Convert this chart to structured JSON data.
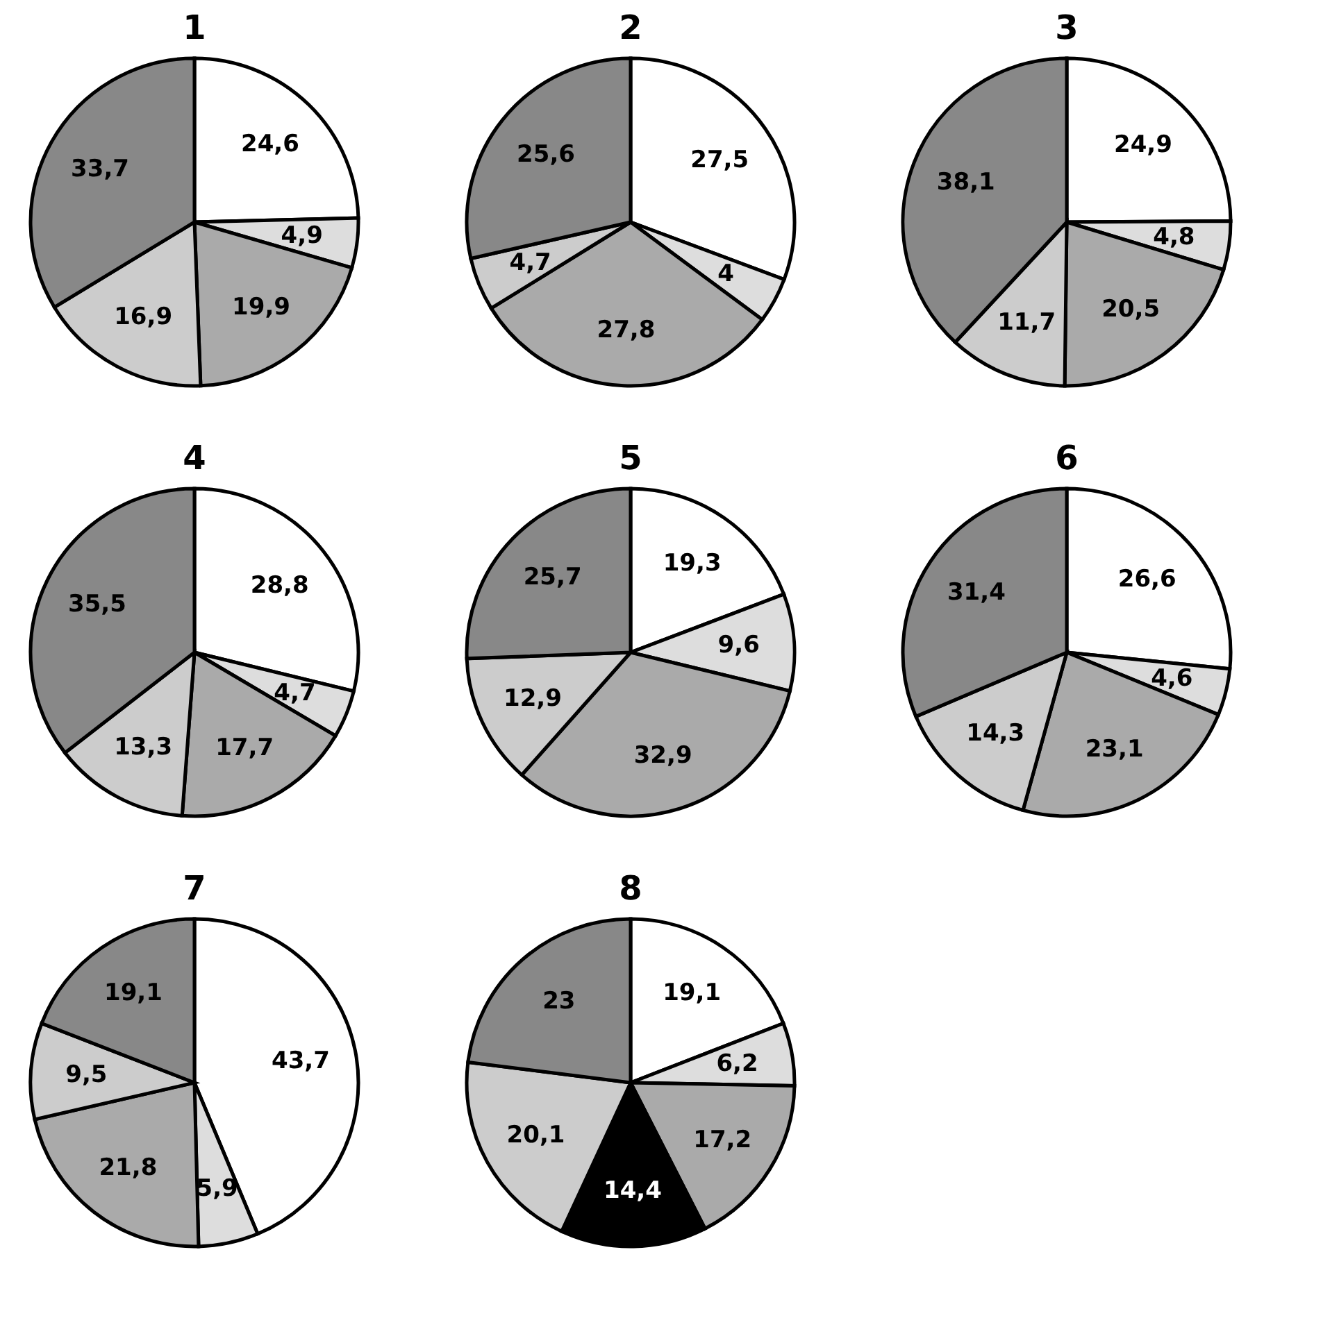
{
  "chart_data": [
    {
      "type": "pie",
      "title": "1",
      "categories": [
        null,
        null,
        null,
        null,
        null
      ],
      "values": [
        24.6,
        4.9,
        19.9,
        16.9,
        33.7
      ],
      "value_labels": [
        "24,6",
        "4,9",
        "19,9",
        "16,9",
        "33,7"
      ],
      "colors": [
        "#ffffff",
        "#dddddd",
        "#aaaaaa",
        "#cccccc",
        "#888888"
      ]
    },
    {
      "type": "pie",
      "title": "2",
      "categories": [
        null,
        null,
        null,
        null,
        null
      ],
      "values": [
        27.5,
        4,
        27.8,
        4.7,
        25.6
      ],
      "value_labels": [
        "27,5",
        "4",
        "27,8",
        "4,7",
        "25,6"
      ],
      "colors": [
        "#ffffff",
        "#dddddd",
        "#aaaaaa",
        "#cccccc",
        "#888888"
      ]
    },
    {
      "type": "pie",
      "title": "3",
      "categories": [
        null,
        null,
        null,
        null,
        null
      ],
      "values": [
        24.9,
        4.8,
        20.5,
        11.7,
        38.1
      ],
      "value_labels": [
        "24,9",
        "4,8",
        "20,5",
        "11,7",
        "38,1"
      ],
      "colors": [
        "#ffffff",
        "#dddddd",
        "#aaaaaa",
        "#cccccc",
        "#888888"
      ]
    },
    {
      "type": "pie",
      "title": "4",
      "categories": [
        null,
        null,
        null,
        null,
        null
      ],
      "values": [
        28.8,
        4.7,
        17.7,
        13.3,
        35.5
      ],
      "value_labels": [
        "28,8",
        "4,7",
        "17,7",
        "13,3",
        "35,5"
      ],
      "colors": [
        "#ffffff",
        "#dddddd",
        "#aaaaaa",
        "#cccccc",
        "#888888"
      ]
    },
    {
      "type": "pie",
      "title": "5",
      "categories": [
        null,
        null,
        null,
        null,
        null
      ],
      "values": [
        19.3,
        9.6,
        32.9,
        12.9,
        25.7
      ],
      "value_labels": [
        "19,3",
        "9,6",
        "32,9",
        "12,9",
        "25,7"
      ],
      "colors": [
        "#ffffff",
        "#dddddd",
        "#aaaaaa",
        "#cccccc",
        "#888888"
      ]
    },
    {
      "type": "pie",
      "title": "6",
      "categories": [
        null,
        null,
        null,
        null,
        null
      ],
      "values": [
        26.6,
        4.6,
        23.1,
        14.3,
        31.4
      ],
      "value_labels": [
        "26,6",
        "4,6",
        "23,1",
        "14,3",
        "31,4"
      ],
      "colors": [
        "#ffffff",
        "#dddddd",
        "#aaaaaa",
        "#cccccc",
        "#888888"
      ]
    },
    {
      "type": "pie",
      "title": "7",
      "categories": [
        null,
        null,
        null,
        null,
        null
      ],
      "values": [
        43.7,
        5.9,
        21.8,
        9.5,
        19.1
      ],
      "value_labels": [
        "43,7",
        "5,9",
        "21,8",
        "9,5",
        "19,1"
      ],
      "colors": [
        "#ffffff",
        "#dddddd",
        "#aaaaaa",
        "#cccccc",
        "#888888"
      ]
    },
    {
      "type": "pie",
      "title": "8",
      "categories": [
        null,
        null,
        null,
        null,
        null,
        null
      ],
      "values": [
        19.1,
        6.2,
        17.2,
        14.4,
        20.1,
        23
      ],
      "value_labels": [
        "19,1",
        "6,2",
        "17,2",
        "14,4",
        "20,1",
        "23"
      ],
      "colors": [
        "#ffffff",
        "#dddddd",
        "#aaaaaa",
        "#000000",
        "#cccccc",
        "#888888"
      ]
    }
  ]
}
